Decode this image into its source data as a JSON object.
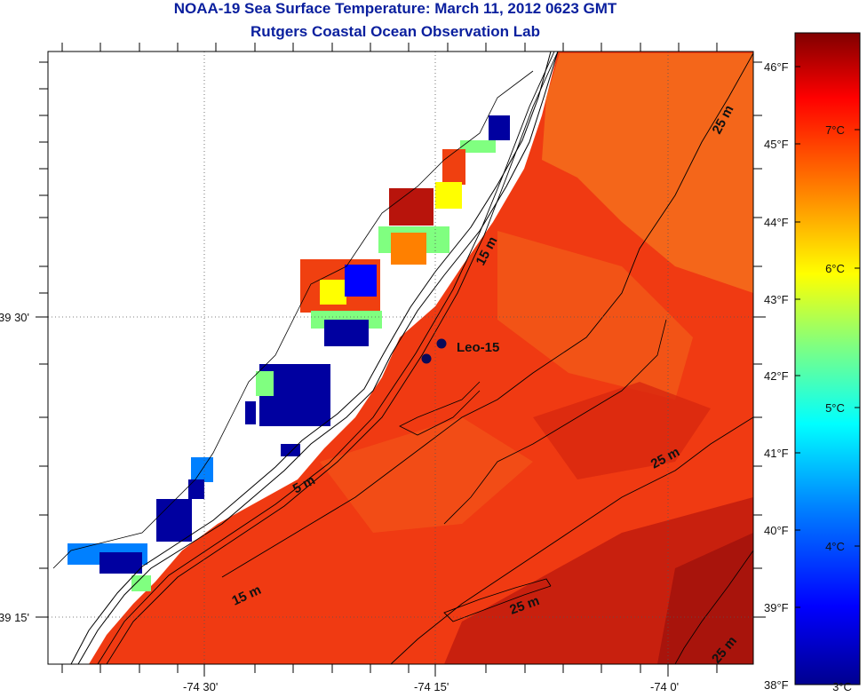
{
  "header": {
    "title": "NOAA-19 Sea Surface Temperature:  March 11, 2012 0623 GMT",
    "subtitle": "Rutgers Coastal Ocean Observation Lab"
  },
  "map": {
    "longitude_labels": [
      "-74 30'",
      "-74 15'",
      "-74 0'"
    ],
    "latitude_labels": [
      "39 30'",
      "39 15'"
    ],
    "contour_labels": [
      "25 m",
      "15 m",
      "5 m",
      "25 m",
      "15 m",
      "25 m",
      "25 m"
    ],
    "station_label": "Leo-15"
  },
  "colorbar": {
    "fahrenheit_labels": [
      "46°F",
      "45°F",
      "44°F",
      "43°F",
      "42°F",
      "41°F",
      "40°F",
      "39°F",
      "38°F"
    ],
    "celsius_labels": [
      "7°C",
      "6°C",
      "5°C",
      "4°C",
      "3°C"
    ],
    "colors": [
      "#00008f",
      "#0000ff",
      "#0080ff",
      "#00ffff",
      "#80ff80",
      "#ffff00",
      "#ff8000",
      "#ff0000",
      "#800000"
    ]
  }
}
